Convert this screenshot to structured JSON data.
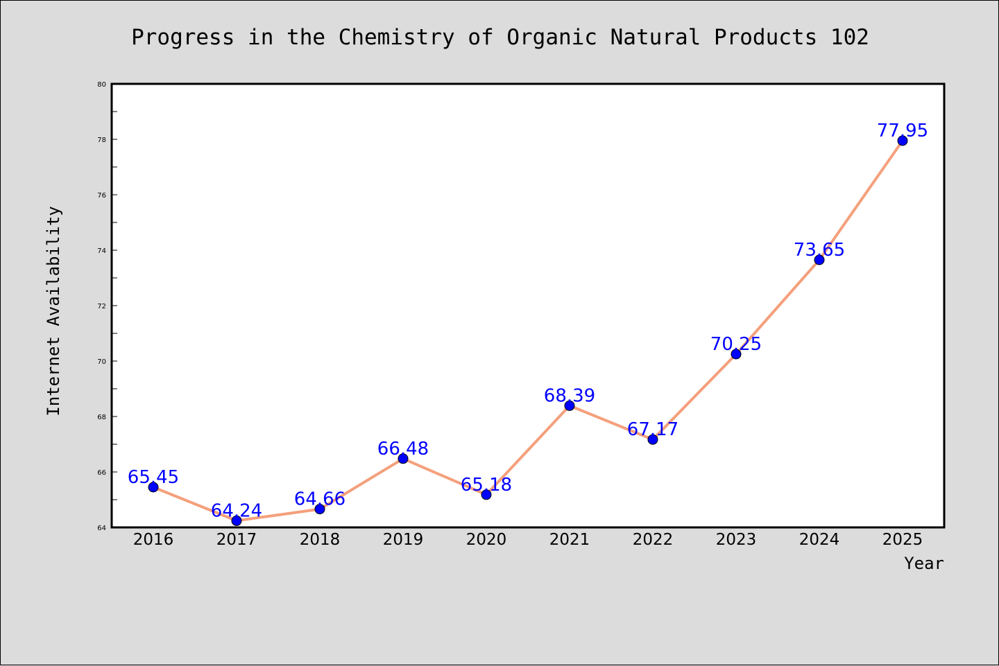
{
  "chart_data": {
    "type": "line",
    "title": "Progress in the Chemistry of Organic Natural Products 102",
    "xlabel": "Year",
    "ylabel": "Internet Availability",
    "categories": [
      "2016",
      "2017",
      "2018",
      "2019",
      "2020",
      "2021",
      "2022",
      "2023",
      "2024",
      "2025"
    ],
    "series": [
      {
        "values": [
          65.45,
          64.24,
          64.66,
          66.48,
          65.18,
          68.39,
          67.17,
          70.25,
          73.65,
          77.95
        ]
      }
    ],
    "data_labels": [
      "65.45",
      "64.24",
      "64.66",
      "66.48",
      "65.18",
      "68.39",
      "67.17",
      "70.25",
      "73.65",
      "77.95"
    ],
    "ylim": [
      64,
      80
    ],
    "yticks": [
      "64",
      "66",
      "68",
      "70",
      "72",
      "74",
      "76",
      "78",
      "80"
    ],
    "grid": false,
    "legend": "none",
    "colors": {
      "line": "#f4a07c",
      "marker": "#0000ff",
      "label": "#0000ff",
      "background": "#dcdcdc",
      "plot_area": "#ffffff"
    }
  }
}
